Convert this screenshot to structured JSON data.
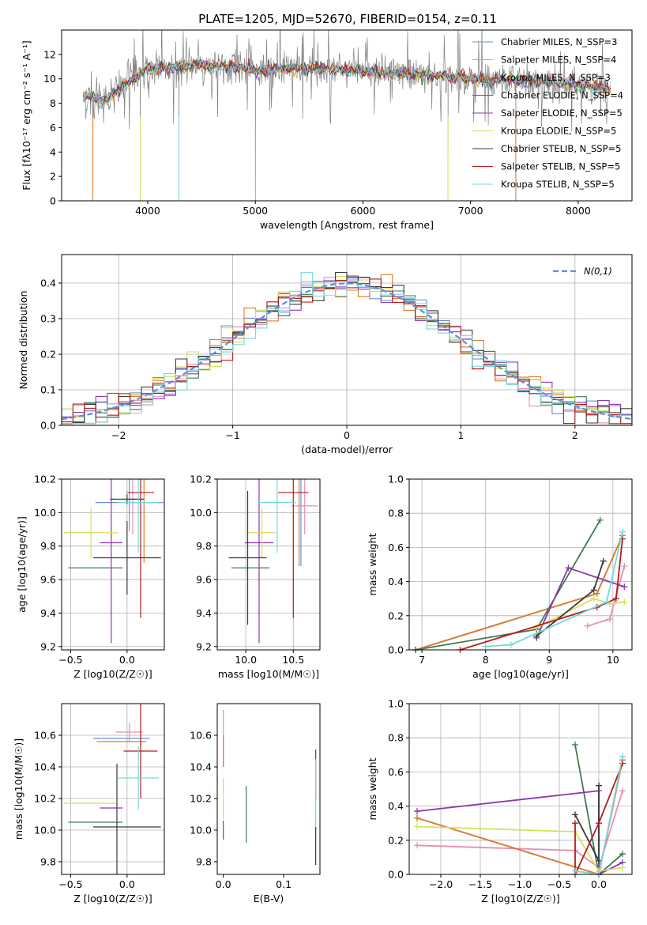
{
  "chart_data": [
    {
      "id": "spectrum",
      "type": "line",
      "title": "PLATE=1205, MJD=52670, FIBERID=0154, z=0.11",
      "xlabel": "wavelength [Angstrom, rest frame]",
      "ylabel": "Flux [fλ10⁻¹⁷ erg cm⁻² s⁻¹ A⁻¹]",
      "xlim": [
        3200,
        8500
      ],
      "ylim": [
        0,
        14
      ],
      "xticks": [
        4000,
        5000,
        6000,
        7000,
        8000
      ],
      "yticks": [
        0,
        2,
        4,
        6,
        8,
        10,
        12
      ],
      "grid": false,
      "legend": "top-right",
      "data_color": "#808080",
      "series": [
        {
          "name": "Chabrier MILES, N_SSP=3",
          "color": "#6a8fd8"
        },
        {
          "name": "Salpeter MILES, N_SSP=4",
          "color": "#e58fb6"
        },
        {
          "name": "Kroupa MILES, N_SSP=3",
          "color": "#e07b2a"
        },
        {
          "name": "Chabrier ELODIE, N_SSP=4",
          "color": "#3f7a4e"
        },
        {
          "name": "Salpeter ELODIE, N_SSP=5",
          "color": "#8e35b0"
        },
        {
          "name": "Kroupa ELODIE, N_SSP=5",
          "color": "#d4e157"
        },
        {
          "name": "Chabrier STELIB, N_SSP=5",
          "color": "#3a3a3a"
        },
        {
          "name": "Salpeter STELIB, N_SSP=5",
          "color": "#b71c1c"
        },
        {
          "name": "Kroupa STELIB, N_SSP=5",
          "color": "#76d7e0"
        }
      ],
      "continuum": [
        {
          "x": 3400,
          "y": 8.6
        },
        {
          "x": 3600,
          "y": 8.2
        },
        {
          "x": 3800,
          "y": 9.6
        },
        {
          "x": 4000,
          "y": 10.8
        },
        {
          "x": 4200,
          "y": 10.9
        },
        {
          "x": 4500,
          "y": 11.1
        },
        {
          "x": 4800,
          "y": 11.0
        },
        {
          "x": 5000,
          "y": 10.7
        },
        {
          "x": 5300,
          "y": 10.8
        },
        {
          "x": 5600,
          "y": 10.9
        },
        {
          "x": 6000,
          "y": 10.6
        },
        {
          "x": 6400,
          "y": 10.4
        },
        {
          "x": 6800,
          "y": 10.2
        },
        {
          "x": 7200,
          "y": 9.9
        },
        {
          "x": 7600,
          "y": 9.8
        },
        {
          "x": 8000,
          "y": 9.5
        },
        {
          "x": 8300,
          "y": 9.2
        }
      ],
      "dips": [
        {
          "x": 3490,
          "y": 0.0
        },
        {
          "x": 3930,
          "y": 0.0
        },
        {
          "x": 4290,
          "y": 0.0
        },
        {
          "x": 5000,
          "y": 0.0
        },
        {
          "x": 6790,
          "y": 0.0
        },
        {
          "x": 7420,
          "y": 0.0
        }
      ]
    },
    {
      "id": "residuals",
      "type": "histogram",
      "xlabel": "(data-model)/error",
      "ylabel": "Normed distribution",
      "xlim": [
        -2.5,
        2.5
      ],
      "ylim": [
        0,
        0.48
      ],
      "xticks": [
        -2,
        -1,
        0,
        1,
        2
      ],
      "yticks": [
        0.0,
        0.1,
        0.2,
        0.3,
        0.4
      ],
      "grid": true,
      "legend": "top-right",
      "legend_label": "N(0,1)",
      "bin_width": 0.1,
      "bin_start": -2.6,
      "series_colors": [
        "#6a8fd8",
        "#e58fb6",
        "#e07b2a",
        "#3f7a4e",
        "#8e35b0",
        "#d4e157",
        "#3a3a3a",
        "#b71c1c",
        "#76d7e0"
      ],
      "normal_color": "#5b8fd8"
    },
    {
      "id": "age-vs-z",
      "type": "errorbar",
      "xlabel": "Z [log10(Z/Z☉)]",
      "ylabel": "age [log10(age/yr)]",
      "xlim": [
        -0.58,
        0.33
      ],
      "ylim": [
        9.18,
        10.2
      ],
      "xticks": [
        -0.5,
        0.0
      ],
      "yticks": [
        9.2,
        9.4,
        9.6,
        9.8,
        10.0,
        10.2
      ],
      "grid": true,
      "points": [
        {
          "x": 0.02,
          "y": 10.06,
          "xerr": 0.3,
          "yerr": 0.17,
          "color": "#6a8fd8"
        },
        {
          "x": 0.05,
          "y": 10.07,
          "xerr": 0.0,
          "yerr": 0.2,
          "color": "#e58fb6"
        },
        {
          "x": 0.15,
          "y": 10.08,
          "xerr": 0.0,
          "yerr": 0.38,
          "color": "#e07b2a"
        },
        {
          "x": -0.28,
          "y": 9.67,
          "xerr": 0.24,
          "yerr": 0.0,
          "color": "#3f7a4e"
        },
        {
          "x": -0.14,
          "y": 9.82,
          "xerr": 0.1,
          "yerr": 0.6,
          "color": "#8e35b0"
        },
        {
          "x": -0.32,
          "y": 9.88,
          "xerr": 0.24,
          "yerr": 0.15,
          "color": "#d4e157"
        },
        {
          "x": 0.0,
          "y": 10.08,
          "xerr": 0.15,
          "yerr": 0.03,
          "color": "#3a3a3a"
        },
        {
          "x": 0.12,
          "y": 10.12,
          "xerr": 0.12,
          "yerr": 0.75,
          "color": "#b71c1c"
        },
        {
          "x": 0.1,
          "y": 10.06,
          "xerr": 0.18,
          "yerr": 0.3,
          "color": "#76d7e0"
        },
        {
          "x": 0.0,
          "y": 9.73,
          "xerr": 0.3,
          "yerr": 0.22,
          "color": "#3a3a3a"
        }
      ]
    },
    {
      "id": "age-vs-mass",
      "type": "errorbar",
      "xlabel": "mass [log10(M/M☉)]",
      "ylabel": "",
      "xlim": [
        9.7,
        10.78
      ],
      "ylim": [
        9.18,
        10.2
      ],
      "xticks": [
        10.0,
        10.5
      ],
      "yticks": [
        9.2,
        9.4,
        9.6,
        9.8,
        10.0,
        10.2
      ],
      "grid": true,
      "points": [
        {
          "x": 10.58,
          "y": 10.08,
          "xerr": 0.0,
          "yerr": 0.4,
          "color": "#6a8fd8"
        },
        {
          "x": 10.62,
          "y": 10.04,
          "xerr": 0.14,
          "yerr": 0.17,
          "color": "#e58fb6"
        },
        {
          "x": 10.56,
          "y": 10.08,
          "xerr": 0.0,
          "yerr": 0.4,
          "color": "#e07b2a"
        },
        {
          "x": 10.05,
          "y": 9.67,
          "xerr": 0.2,
          "yerr": 0.0,
          "color": "#3f7a4e"
        },
        {
          "x": 10.14,
          "y": 9.82,
          "xerr": 0.15,
          "yerr": 0.6,
          "color": "#8e35b0"
        },
        {
          "x": 10.17,
          "y": 9.88,
          "xerr": 0.15,
          "yerr": 0.15,
          "color": "#d4e157"
        },
        {
          "x": 10.02,
          "y": 9.73,
          "xerr": 0.2,
          "yerr": 0.4,
          "color": "#3a3a3a"
        },
        {
          "x": 10.5,
          "y": 10.12,
          "xerr": 0.16,
          "yerr": 0.75,
          "color": "#b71c1c"
        },
        {
          "x": 10.33,
          "y": 10.06,
          "xerr": 0.2,
          "yerr": 0.3,
          "color": "#76d7e0"
        }
      ]
    },
    {
      "id": "mass-weight-vs-age",
      "type": "line",
      "xlabel": "age [log10(age/yr)]",
      "ylabel": "mass weight",
      "xlim": [
        6.8,
        10.3
      ],
      "ylim": [
        0,
        1
      ],
      "xticks": [
        7,
        8,
        9,
        10
      ],
      "yticks": [
        0.0,
        0.2,
        0.4,
        0.6,
        0.8,
        1.0
      ],
      "grid": true,
      "series": [
        {
          "color": "#6a8fd8",
          "x": [
            6.9,
            9.75,
            10.15
          ],
          "y": [
            0.0,
            0.33,
            0.67
          ]
        },
        {
          "color": "#e58fb6",
          "x": [
            9.6,
            9.95,
            10.18
          ],
          "y": [
            0.14,
            0.18,
            0.49
          ]
        },
        {
          "color": "#e07b2a",
          "x": [
            6.9,
            9.75,
            10.15
          ],
          "y": [
            0.0,
            0.33,
            0.67
          ]
        },
        {
          "color": "#3f7a4e",
          "x": [
            6.9,
            8.8,
            9.8
          ],
          "y": [
            0.0,
            0.12,
            0.76
          ]
        },
        {
          "color": "#8e35b0",
          "x": [
            8.8,
            9.3,
            10.18
          ],
          "y": [
            0.07,
            0.48,
            0.37
          ]
        },
        {
          "color": "#d4e157",
          "x": [
            8.8,
            9.7,
            9.95,
            10.18
          ],
          "y": [
            0.13,
            0.3,
            0.27,
            0.28
          ]
        },
        {
          "color": "#3a3a3a",
          "x": [
            8.8,
            9.7,
            9.85
          ],
          "y": [
            0.08,
            0.35,
            0.52
          ]
        },
        {
          "color": "#b71c1c",
          "x": [
            7.6,
            9.75,
            10.05,
            10.15
          ],
          "y": [
            0.0,
            0.25,
            0.3,
            0.65
          ]
        },
        {
          "color": "#76d7e0",
          "x": [
            8.0,
            8.4,
            9.9,
            10.15
          ],
          "y": [
            0.02,
            0.03,
            0.28,
            0.69
          ]
        }
      ]
    },
    {
      "id": "mass-vs-z",
      "type": "errorbar",
      "xlabel": "Z [log10(Z/Z☉)]",
      "ylabel": "mass [log10(M/M☉)]",
      "xlim": [
        -0.58,
        0.33
      ],
      "ylim": [
        9.72,
        10.8
      ],
      "xticks": [
        -0.5,
        0.0
      ],
      "yticks": [
        9.8,
        10.0,
        10.2,
        10.4,
        10.6
      ],
      "grid": true,
      "points": [
        {
          "x": -0.05,
          "y": 10.58,
          "xerr": 0.25,
          "yerr": 0.0,
          "color": "#6a8fd8"
        },
        {
          "x": 0.02,
          "y": 10.62,
          "xerr": 0.12,
          "yerr": 0.06,
          "color": "#e58fb6"
        },
        {
          "x": -0.05,
          "y": 10.56,
          "xerr": 0.22,
          "yerr": 0.0,
          "color": "#e07b2a"
        },
        {
          "x": -0.28,
          "y": 10.05,
          "xerr": 0.24,
          "yerr": 0.0,
          "color": "#3f7a4e"
        },
        {
          "x": -0.14,
          "y": 10.14,
          "xerr": 0.1,
          "yerr": 0.0,
          "color": "#8e35b0"
        },
        {
          "x": -0.32,
          "y": 10.17,
          "xerr": 0.24,
          "yerr": 0.0,
          "color": "#d4e157"
        },
        {
          "x": -0.09,
          "y": 10.02,
          "xerr": 0.0,
          "yerr": 0.4,
          "color": "#3a3a3a"
        },
        {
          "x": 0.12,
          "y": 10.5,
          "xerr": 0.15,
          "yerr": 0.3,
          "color": "#b71c1c"
        },
        {
          "x": 0.1,
          "y": 10.33,
          "xerr": 0.18,
          "yerr": 0.2,
          "color": "#76d7e0"
        },
        {
          "x": 0.0,
          "y": 10.02,
          "xerr": 0.3,
          "yerr": 0.0,
          "color": "#3a3a3a"
        }
      ]
    },
    {
      "id": "mass-vs-ebv",
      "type": "errorbar",
      "xlabel": "E(B-V)",
      "ylabel": "",
      "xlim": [
        -0.01,
        0.16
      ],
      "ylim": [
        9.72,
        10.8
      ],
      "xticks": [
        0.0,
        0.1
      ],
      "yticks": [
        9.8,
        10.0,
        10.2,
        10.4,
        10.6
      ],
      "grid": false,
      "points": [
        {
          "x": 0.0,
          "y": 10.58,
          "xerr": 0.0,
          "yerr": 0.18,
          "color": "#e58fb6"
        },
        {
          "x": 0.0,
          "y": 10.5,
          "xerr": 0.0,
          "yerr": 0.1,
          "color": "#e07b2a"
        },
        {
          "x": 0.0,
          "y": 10.2,
          "xerr": 0.0,
          "yerr": 0.13,
          "color": "#d4e157"
        },
        {
          "x": 0.0,
          "y": 10.0,
          "xerr": 0.0,
          "yerr": 0.06,
          "color": "#8e35b0"
        },
        {
          "x": 0.038,
          "y": 10.1,
          "xerr": 0.0,
          "yerr": 0.18,
          "color": "#3f7a4e"
        },
        {
          "x": 0.153,
          "y": 10.35,
          "xerr": 0.0,
          "yerr": 0.16,
          "color": "#b71c1c"
        },
        {
          "x": 0.153,
          "y": 10.2,
          "xerr": 0.0,
          "yerr": 0.25,
          "color": "#76d7e0"
        },
        {
          "x": 0.153,
          "y": 9.9,
          "xerr": 0.0,
          "yerr": 0.12,
          "color": "#3a3a3a"
        }
      ]
    },
    {
      "id": "mass-weight-vs-z",
      "type": "line",
      "xlabel": "Z [log10(Z/Z☉)]",
      "ylabel": "mass weight",
      "xlim": [
        -2.4,
        0.42
      ],
      "ylim": [
        0,
        1
      ],
      "xticks": [
        -2.0,
        -1.5,
        -1.0,
        -0.5,
        0.0
      ],
      "yticks": [
        0.0,
        0.2,
        0.4,
        0.6,
        0.8,
        1.0
      ],
      "grid": true,
      "series": [
        {
          "color": "#6a8fd8",
          "x": [
            -2.3,
            0.0,
            0.3
          ],
          "y": [
            0.33,
            0.0,
            0.67
          ]
        },
        {
          "color": "#e58fb6",
          "x": [
            -2.3,
            -0.3,
            0.0,
            0.3
          ],
          "y": [
            0.17,
            0.14,
            0.04,
            0.49
          ]
        },
        {
          "color": "#e07b2a",
          "x": [
            -2.3,
            0.0,
            0.3
          ],
          "y": [
            0.33,
            0.0,
            0.67
          ]
        },
        {
          "color": "#3f7a4e",
          "x": [
            -0.3,
            0.0,
            0.3
          ],
          "y": [
            0.76,
            0.0,
            0.12
          ]
        },
        {
          "color": "#8e35b0",
          "x": [
            -2.3,
            0.0,
            0.0,
            0.3
          ],
          "y": [
            0.37,
            0.49,
            0.0,
            0.07
          ]
        },
        {
          "color": "#d4e157",
          "x": [
            -2.3,
            -0.3,
            0.0,
            0.3
          ],
          "y": [
            0.28,
            0.25,
            0.02,
            0.04
          ]
        },
        {
          "color": "#3a3a3a",
          "x": [
            -0.3,
            0.0,
            0.0
          ],
          "y": [
            0.35,
            0.08,
            0.52
          ]
        },
        {
          "color": "#b71c1c",
          "x": [
            -0.3,
            -0.3,
            0.0,
            0.3
          ],
          "y": [
            0.3,
            0.0,
            0.3,
            0.65
          ]
        },
        {
          "color": "#76d7e0",
          "x": [
            -0.3,
            0.0,
            0.3
          ],
          "y": [
            0.02,
            0.0,
            0.69
          ]
        }
      ]
    }
  ]
}
